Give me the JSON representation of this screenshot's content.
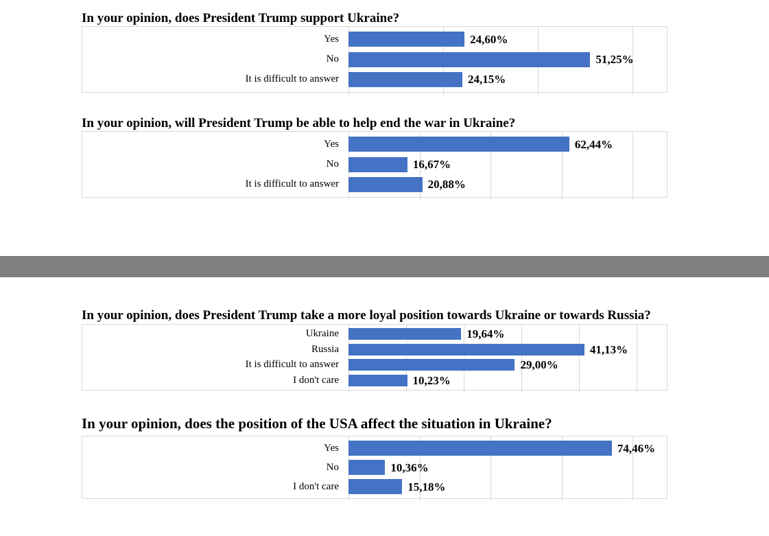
{
  "divider": {
    "color": "#7f7f7f"
  },
  "chart_style": {
    "bar_color": "#4472c4",
    "grid_color": "#d9d9d9",
    "border_color": "#d9d9d9",
    "data_label_position": "outside-end",
    "axis_tick_labels_visible": false
  },
  "chart_data": [
    {
      "type": "bar",
      "orientation": "horizontal",
      "title": "In your opinion, does President Trump support Ukraine?",
      "categories": [
        "Yes",
        "No",
        "It is difficult to answer"
      ],
      "values": [
        24.6,
        51.25,
        24.15
      ],
      "value_labels": [
        "24,60%",
        "51,25%",
        "24,15%"
      ],
      "axis_max": 67.5,
      "grid_step": 20,
      "grid": true,
      "bar_color": "#4472c4"
    },
    {
      "type": "bar",
      "orientation": "horizontal",
      "title": "In your opinion, will President Trump be able to help end the war in Ukraine?",
      "categories": [
        "Yes",
        "No",
        "It is difficult to answer"
      ],
      "values": [
        62.44,
        16.67,
        20.88
      ],
      "value_labels": [
        "62,44%",
        "16,67%",
        "20,88%"
      ],
      "axis_max": 90,
      "grid_step": 20,
      "grid": true,
      "bar_color": "#4472c4"
    },
    {
      "type": "bar",
      "orientation": "horizontal",
      "title": "In your opinion, does President Trump take a more loyal position towards Ukraine or towards Russia?",
      "categories": [
        "Ukraine",
        "Russia",
        "It is difficult to answer",
        "I don't care"
      ],
      "values": [
        19.64,
        41.13,
        29.0,
        10.23
      ],
      "value_labels": [
        "19,64%",
        "41,13%",
        "29,00%",
        "10,23%"
      ],
      "axis_max": 55.5,
      "grid_step": 10,
      "grid": true,
      "bar_color": "#4472c4"
    },
    {
      "type": "bar",
      "orientation": "horizontal",
      "title": "In your opinion, does the position of the USA affect the situation in Ukraine?",
      "categories": [
        "Yes",
        "No",
        "I don't care"
      ],
      "values": [
        74.46,
        10.36,
        15.18
      ],
      "value_labels": [
        "74,46%",
        "10,36%",
        "15,18%"
      ],
      "axis_max": 90,
      "grid_step": 20,
      "grid": true,
      "bar_color": "#4472c4"
    }
  ]
}
